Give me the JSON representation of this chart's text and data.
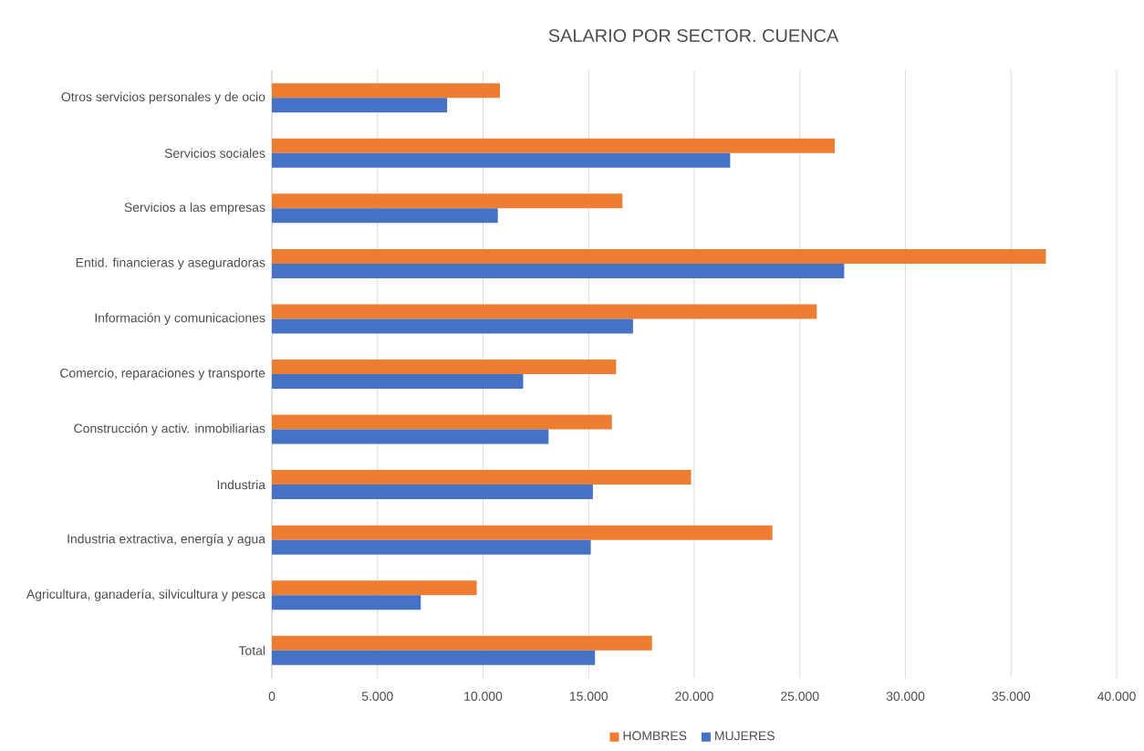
{
  "chart_data": {
    "type": "bar",
    "orientation": "horizontal",
    "title": "SALARIO POR SECTOR. CUENCA",
    "categories": [
      "Otros servicios personales y de ocio",
      "Servicios sociales",
      "Servicios a las empresas",
      "Entid. financieras y aseguradoras",
      "Información y comunicaciones",
      "Comercio, reparaciones y transporte",
      "Construcción y activ. inmobiliarias",
      "Industria",
      "Industria extractiva, energía y agua",
      "Agricultura, ganadería, silvicultura y pesca",
      "Total"
    ],
    "series": [
      {
        "name": "HOMBRES",
        "color": "#ed7d31",
        "values": [
          10800,
          26650,
          16600,
          36650,
          25800,
          16300,
          16100,
          19850,
          23700,
          9700,
          18000
        ]
      },
      {
        "name": "MUJERES",
        "color": "#4472c4",
        "values": [
          8300,
          21700,
          10700,
          27100,
          17100,
          11900,
          13100,
          15200,
          15100,
          7050,
          15300
        ]
      }
    ],
    "xlim": [
      0,
      40000
    ],
    "xticks": [
      0,
      {
        "value": 5000,
        "label": "5.000"
      },
      {
        "value": 10000,
        "label": "10.000"
      },
      {
        "value": 15000,
        "label": "15.000"
      },
      {
        "value": 20000,
        "label": "20.000"
      },
      {
        "value": 25000,
        "label": "25.000"
      },
      {
        "value": 30000,
        "label": "30.000"
      },
      {
        "value": 35000,
        "label": "35.000"
      },
      {
        "value": 40000,
        "label": "40.000"
      }
    ],
    "grid": "x",
    "legend": "bottom"
  }
}
